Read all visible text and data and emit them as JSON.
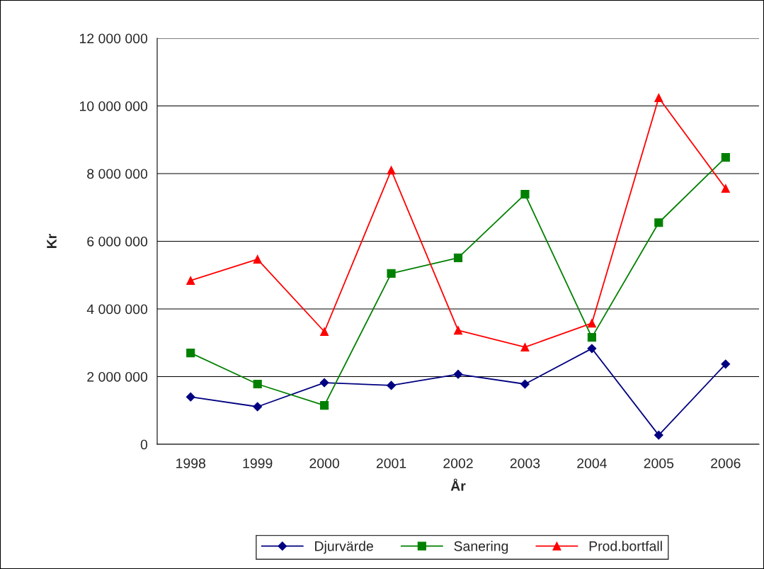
{
  "chart_data": {
    "type": "line",
    "xlabel": "År",
    "ylabel": "Kr",
    "categories": [
      "1998",
      "1999",
      "2000",
      "2001",
      "2002",
      "2003",
      "2004",
      "2005",
      "2006"
    ],
    "series": [
      {
        "name": "Djurvärde",
        "color": "#000080",
        "marker": "diamond",
        "values": [
          1400000,
          1110000,
          1820000,
          1740000,
          2070000,
          1780000,
          2830000,
          270000,
          2370000
        ]
      },
      {
        "name": "Sanering",
        "color": "#008000",
        "marker": "square",
        "values": [
          2700000,
          1780000,
          1150000,
          5050000,
          5510000,
          7390000,
          3160000,
          6550000,
          8480000
        ]
      },
      {
        "name": "Prod.bortfall",
        "color": "#ff0000",
        "marker": "triangle",
        "values": [
          4840000,
          5470000,
          3330000,
          8100000,
          3370000,
          2870000,
          3580000,
          10240000,
          7560000
        ]
      }
    ],
    "ylim": [
      0,
      12000000
    ],
    "yticks": [
      {
        "value": 0,
        "label": "0"
      },
      {
        "value": 2000000,
        "label": "2 000 000"
      },
      {
        "value": 4000000,
        "label": "4 000 000"
      },
      {
        "value": 6000000,
        "label": "6 000 000"
      },
      {
        "value": 8000000,
        "label": "8 000 000"
      },
      {
        "value": 10000000,
        "label": "10 000 000"
      },
      {
        "value": 12000000,
        "label": "12 000 000"
      }
    ],
    "grid": "y",
    "legend": "bottom",
    "line_style": "solid"
  }
}
